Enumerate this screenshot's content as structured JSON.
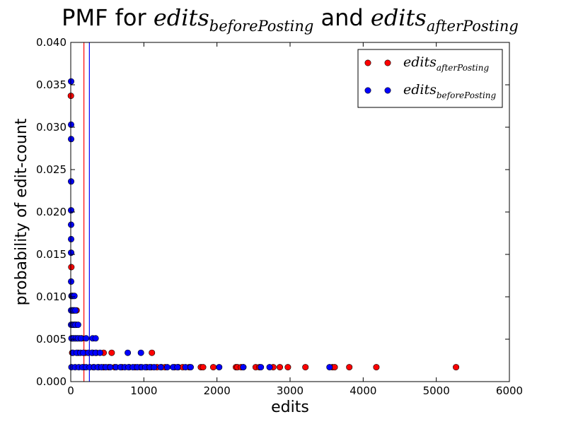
{
  "chart_data": {
    "type": "scatter",
    "title": {
      "prefix": "PMF for ",
      "var1": "edits",
      "sub1": "beforePosting",
      "mid": " and ",
      "var2": "edits",
      "sub2": "afterPosting"
    },
    "xlabel": "edits",
    "ylabel": "probability of edit-count",
    "xlim": [
      0,
      6000
    ],
    "ylim": [
      0,
      0.04
    ],
    "xticks": [
      0,
      1000,
      2000,
      3000,
      4000,
      5000,
      6000
    ],
    "yticks": [
      0.0,
      0.005,
      0.01,
      0.015,
      0.02,
      0.025,
      0.03,
      0.035,
      0.04
    ],
    "legend_position": "top-right",
    "vlines": [
      {
        "x": 180,
        "color": "#ff0000"
      },
      {
        "x": 255,
        "color": "#0000ff"
      }
    ],
    "series": [
      {
        "name": "edits",
        "subscript": "afterPosting",
        "color": "#ff0000",
        "points": [
          [
            2,
            0.0337
          ],
          [
            8,
            0.0135
          ],
          [
            10,
            0.0084
          ],
          [
            20,
            0.0084
          ],
          [
            30,
            0.0084
          ],
          [
            40,
            0.0084
          ],
          [
            55,
            0.0084
          ],
          [
            80,
            0.0084
          ],
          [
            15,
            0.0067
          ],
          [
            50,
            0.0067
          ],
          [
            75,
            0.0067
          ],
          [
            15,
            0.0051
          ],
          [
            30,
            0.0051
          ],
          [
            60,
            0.0051
          ],
          [
            90,
            0.0051
          ],
          [
            120,
            0.0051
          ],
          [
            150,
            0.0051
          ],
          [
            20,
            0.0034
          ],
          [
            100,
            0.0034
          ],
          [
            200,
            0.0034
          ],
          [
            300,
            0.0034
          ],
          [
            350,
            0.0034
          ],
          [
            450,
            0.0034
          ],
          [
            560,
            0.0034
          ],
          [
            1110,
            0.0034
          ],
          [
            180,
            0.0017
          ],
          [
            310,
            0.0017
          ],
          [
            380,
            0.0017
          ],
          [
            450,
            0.0017
          ],
          [
            520,
            0.0017
          ],
          [
            600,
            0.0017
          ],
          [
            700,
            0.0017
          ],
          [
            800,
            0.0017
          ],
          [
            880,
            0.0017
          ],
          [
            950,
            0.0017
          ],
          [
            1040,
            0.0017
          ],
          [
            1100,
            0.0017
          ],
          [
            1180,
            0.0017
          ],
          [
            1240,
            0.0017
          ],
          [
            1290,
            0.0017
          ],
          [
            1420,
            0.0017
          ],
          [
            1470,
            0.0017
          ],
          [
            1530,
            0.0017
          ],
          [
            1620,
            0.0017
          ],
          [
            1780,
            0.0017
          ],
          [
            1810,
            0.0017
          ],
          [
            1950,
            0.0017
          ],
          [
            2260,
            0.0017
          ],
          [
            2280,
            0.0017
          ],
          [
            2330,
            0.0017
          ],
          [
            2360,
            0.0017
          ],
          [
            2530,
            0.0017
          ],
          [
            2580,
            0.0017
          ],
          [
            2770,
            0.0017
          ],
          [
            2860,
            0.0017
          ],
          [
            2970,
            0.0017
          ],
          [
            3210,
            0.0017
          ],
          [
            3580,
            0.0017
          ],
          [
            3610,
            0.0017
          ],
          [
            3810,
            0.0017
          ],
          [
            4180,
            0.0017
          ],
          [
            5270,
            0.0017
          ]
        ]
      },
      {
        "name": "edits",
        "subscript": "beforePosting",
        "color": "#0000ff",
        "points": [
          [
            5,
            0.0354
          ],
          [
            5,
            0.0303
          ],
          [
            5,
            0.0286
          ],
          [
            5,
            0.0236
          ],
          [
            5,
            0.0202
          ],
          [
            5,
            0.0185
          ],
          [
            5,
            0.0168
          ],
          [
            5,
            0.0152
          ],
          [
            5,
            0.0118
          ],
          [
            10,
            0.0101
          ],
          [
            20,
            0.0101
          ],
          [
            30,
            0.0101
          ],
          [
            50,
            0.0101
          ],
          [
            5,
            0.0084
          ],
          [
            25,
            0.0084
          ],
          [
            45,
            0.0084
          ],
          [
            65,
            0.0084
          ],
          [
            5,
            0.0067
          ],
          [
            25,
            0.0067
          ],
          [
            45,
            0.0067
          ],
          [
            65,
            0.0067
          ],
          [
            100,
            0.0067
          ],
          [
            10,
            0.0051
          ],
          [
            40,
            0.0051
          ],
          [
            70,
            0.0051
          ],
          [
            100,
            0.0051
          ],
          [
            140,
            0.0051
          ],
          [
            210,
            0.0051
          ],
          [
            300,
            0.0051
          ],
          [
            340,
            0.0051
          ],
          [
            30,
            0.0034
          ],
          [
            80,
            0.0034
          ],
          [
            130,
            0.0034
          ],
          [
            170,
            0.0034
          ],
          [
            240,
            0.0034
          ],
          [
            290,
            0.0034
          ],
          [
            340,
            0.0034
          ],
          [
            400,
            0.0034
          ],
          [
            780,
            0.0034
          ],
          [
            960,
            0.0034
          ],
          [
            10,
            0.0017
          ],
          [
            60,
            0.0017
          ],
          [
            110,
            0.0017
          ],
          [
            160,
            0.0017
          ],
          [
            210,
            0.0017
          ],
          [
            260,
            0.0017
          ],
          [
            320,
            0.0017
          ],
          [
            370,
            0.0017
          ],
          [
            420,
            0.0017
          ],
          [
            480,
            0.0017
          ],
          [
            540,
            0.0017
          ],
          [
            620,
            0.0017
          ],
          [
            680,
            0.0017
          ],
          [
            740,
            0.0017
          ],
          [
            790,
            0.0017
          ],
          [
            850,
            0.0017
          ],
          [
            910,
            0.0017
          ],
          [
            970,
            0.0017
          ],
          [
            1020,
            0.0017
          ],
          [
            1080,
            0.0017
          ],
          [
            1140,
            0.0017
          ],
          [
            1230,
            0.0017
          ],
          [
            1320,
            0.0017
          ],
          [
            1400,
            0.0017
          ],
          [
            1460,
            0.0017
          ],
          [
            1570,
            0.0017
          ],
          [
            1640,
            0.0017
          ],
          [
            2030,
            0.0017
          ],
          [
            2360,
            0.0017
          ],
          [
            2600,
            0.0017
          ],
          [
            2720,
            0.0017
          ],
          [
            3540,
            0.0017
          ]
        ]
      }
    ]
  }
}
